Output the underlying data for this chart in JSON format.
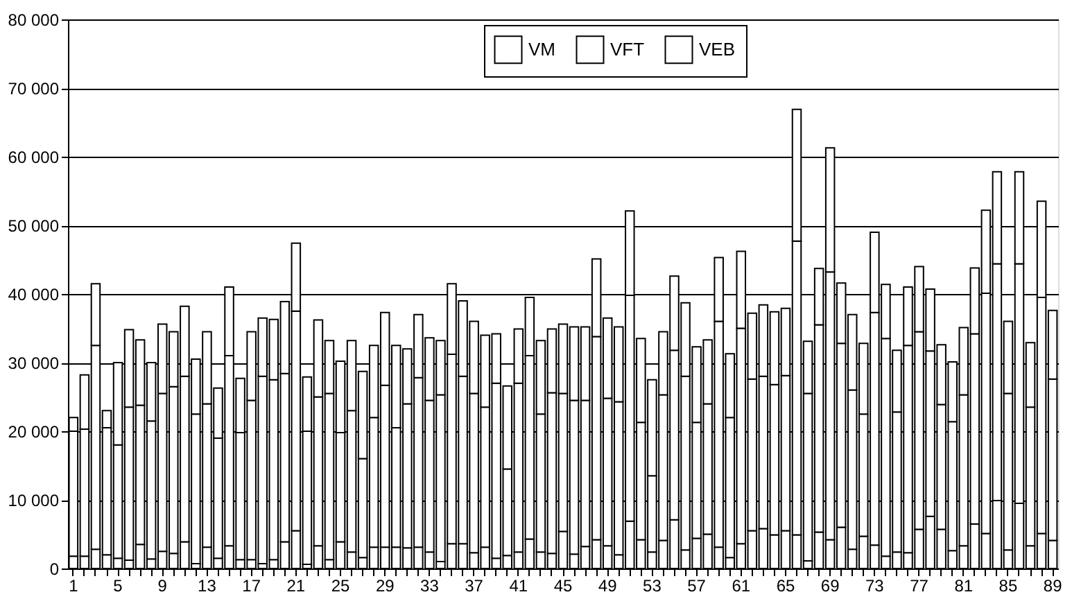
{
  "chart_data": {
    "type": "bar",
    "stacked": true,
    "grid": "y",
    "legend": "top",
    "categories": [
      "1",
      null,
      null,
      null,
      "5",
      null,
      null,
      null,
      "9",
      null,
      null,
      null,
      "13",
      null,
      null,
      null,
      "17",
      null,
      null,
      null,
      "21",
      null,
      null,
      null,
      "25",
      null,
      null,
      null,
      "29",
      null,
      null,
      null,
      "33",
      null,
      null,
      null,
      "37",
      null,
      null,
      null,
      "41",
      null,
      null,
      null,
      "45",
      null,
      null,
      null,
      "49",
      null,
      null,
      null,
      "53",
      null,
      null,
      null,
      "57",
      null,
      null,
      null,
      "61",
      null,
      null,
      null,
      "65",
      null,
      null,
      null,
      "69",
      null,
      null,
      null,
      "73",
      null,
      null,
      null,
      "77",
      null,
      null,
      null,
      "81",
      null,
      null,
      null,
      "85",
      null,
      null,
      null,
      "89"
    ],
    "ylim": [
      0,
      80000
    ],
    "yticks": [
      {
        "value": 0,
        "label": "0"
      },
      {
        "value": 10000,
        "label": "10 000"
      },
      {
        "value": 20000,
        "label": "20 000"
      },
      {
        "value": 30000,
        "label": "30 000"
      },
      {
        "value": 40000,
        "label": "40 000"
      },
      {
        "value": 50000,
        "label": "50 000"
      },
      {
        "value": 60000,
        "label": "60 000"
      },
      {
        "value": 70000,
        "label": "70 000"
      },
      {
        "value": 80000,
        "label": "80 000"
      }
    ],
    "series": [
      {
        "name": "VM",
        "color": "#ffffff",
        "values": [
          1800,
          1800,
          2800,
          2000,
          1500,
          1200,
          3500,
          1400,
          2500,
          2200,
          3900,
          700,
          3100,
          1500,
          3300,
          1300,
          1300,
          700,
          1300,
          3900,
          5500,
          600,
          3300,
          1300,
          3900,
          2400,
          1600,
          3100,
          3100,
          3100,
          3000,
          3100,
          2400,
          1000,
          3600,
          3600,
          2300,
          3100,
          1500,
          1900,
          2400,
          4300,
          2400,
          2200,
          5400,
          2100,
          3200,
          4200,
          3300,
          2000,
          6900,
          4200,
          2400,
          4100,
          7100,
          2700,
          4400,
          5000,
          3100,
          1600,
          3600,
          5500,
          5800,
          4900,
          5500,
          4900,
          1100,
          5300,
          4200,
          6000,
          2800,
          4700,
          3400,
          1800,
          2400,
          2300,
          5700,
          7600,
          5700,
          2600,
          3300,
          6500,
          5100,
          9900,
          2700,
          9500,
          3300,
          5100,
          4100
        ]
      },
      {
        "name": "VFT",
        "color": "#ffffff",
        "values": [
          18200,
          18500,
          29700,
          18500,
          16500,
          22300,
          20300,
          20100,
          23000,
          24300,
          24100,
          21800,
          20900,
          17500,
          27700,
          18500,
          23200,
          27300,
          26200,
          24500,
          32000,
          19400,
          21700,
          24200,
          15900,
          20600,
          14400,
          18900,
          23600,
          17400,
          21000,
          24700,
          22100,
          24300,
          27600,
          24400,
          23200,
          20400,
          25500,
          12600,
          24600,
          26700,
          20100,
          23400,
          20100,
          22400,
          21300,
          29600,
          21500,
          22300,
          32900,
          17100,
          11100,
          21200,
          24700,
          25300,
          16900,
          19000,
          32900,
          20400,
          31400,
          22100,
          22200,
          21900,
          22600,
          42800,
          24400,
          30200,
          39000,
          26800,
          23200,
          17800,
          33900,
          31700,
          20400,
          30200,
          28800,
          24100,
          18200,
          18800,
          22000,
          27700,
          35000,
          34500,
          22800,
          34900,
          20200,
          34400,
          23500
        ]
      },
      {
        "name": "VEB",
        "color": "#ffffff",
        "values": [
          2000,
          7900,
          9000,
          2500,
          12000,
          11300,
          9500,
          8500,
          10100,
          8000,
          10200,
          8000,
          10500,
          7300,
          10000,
          7900,
          10000,
          8500,
          8800,
          10500,
          9900,
          7900,
          11200,
          7700,
          10400,
          10200,
          12700,
          10500,
          10600,
          12000,
          8000,
          9200,
          9100,
          7900,
          10300,
          11000,
          10500,
          10500,
          7200,
          12100,
          7900,
          8500,
          10700,
          9300,
          10100,
          10700,
          10700,
          11300,
          11700,
          10900,
          12300,
          12200,
          14000,
          9200,
          10800,
          10700,
          11000,
          9300,
          9300,
          9300,
          11200,
          9600,
          10400,
          10600,
          9800,
          19200,
          7600,
          8200,
          18100,
          8800,
          11000,
          10300,
          11700,
          7900,
          9000,
          8500,
          9500,
          9000,
          8700,
          8700,
          9800,
          9600,
          12100,
          13400,
          10500,
          13400,
          9400,
          14000,
          10000
        ]
      }
    ]
  }
}
